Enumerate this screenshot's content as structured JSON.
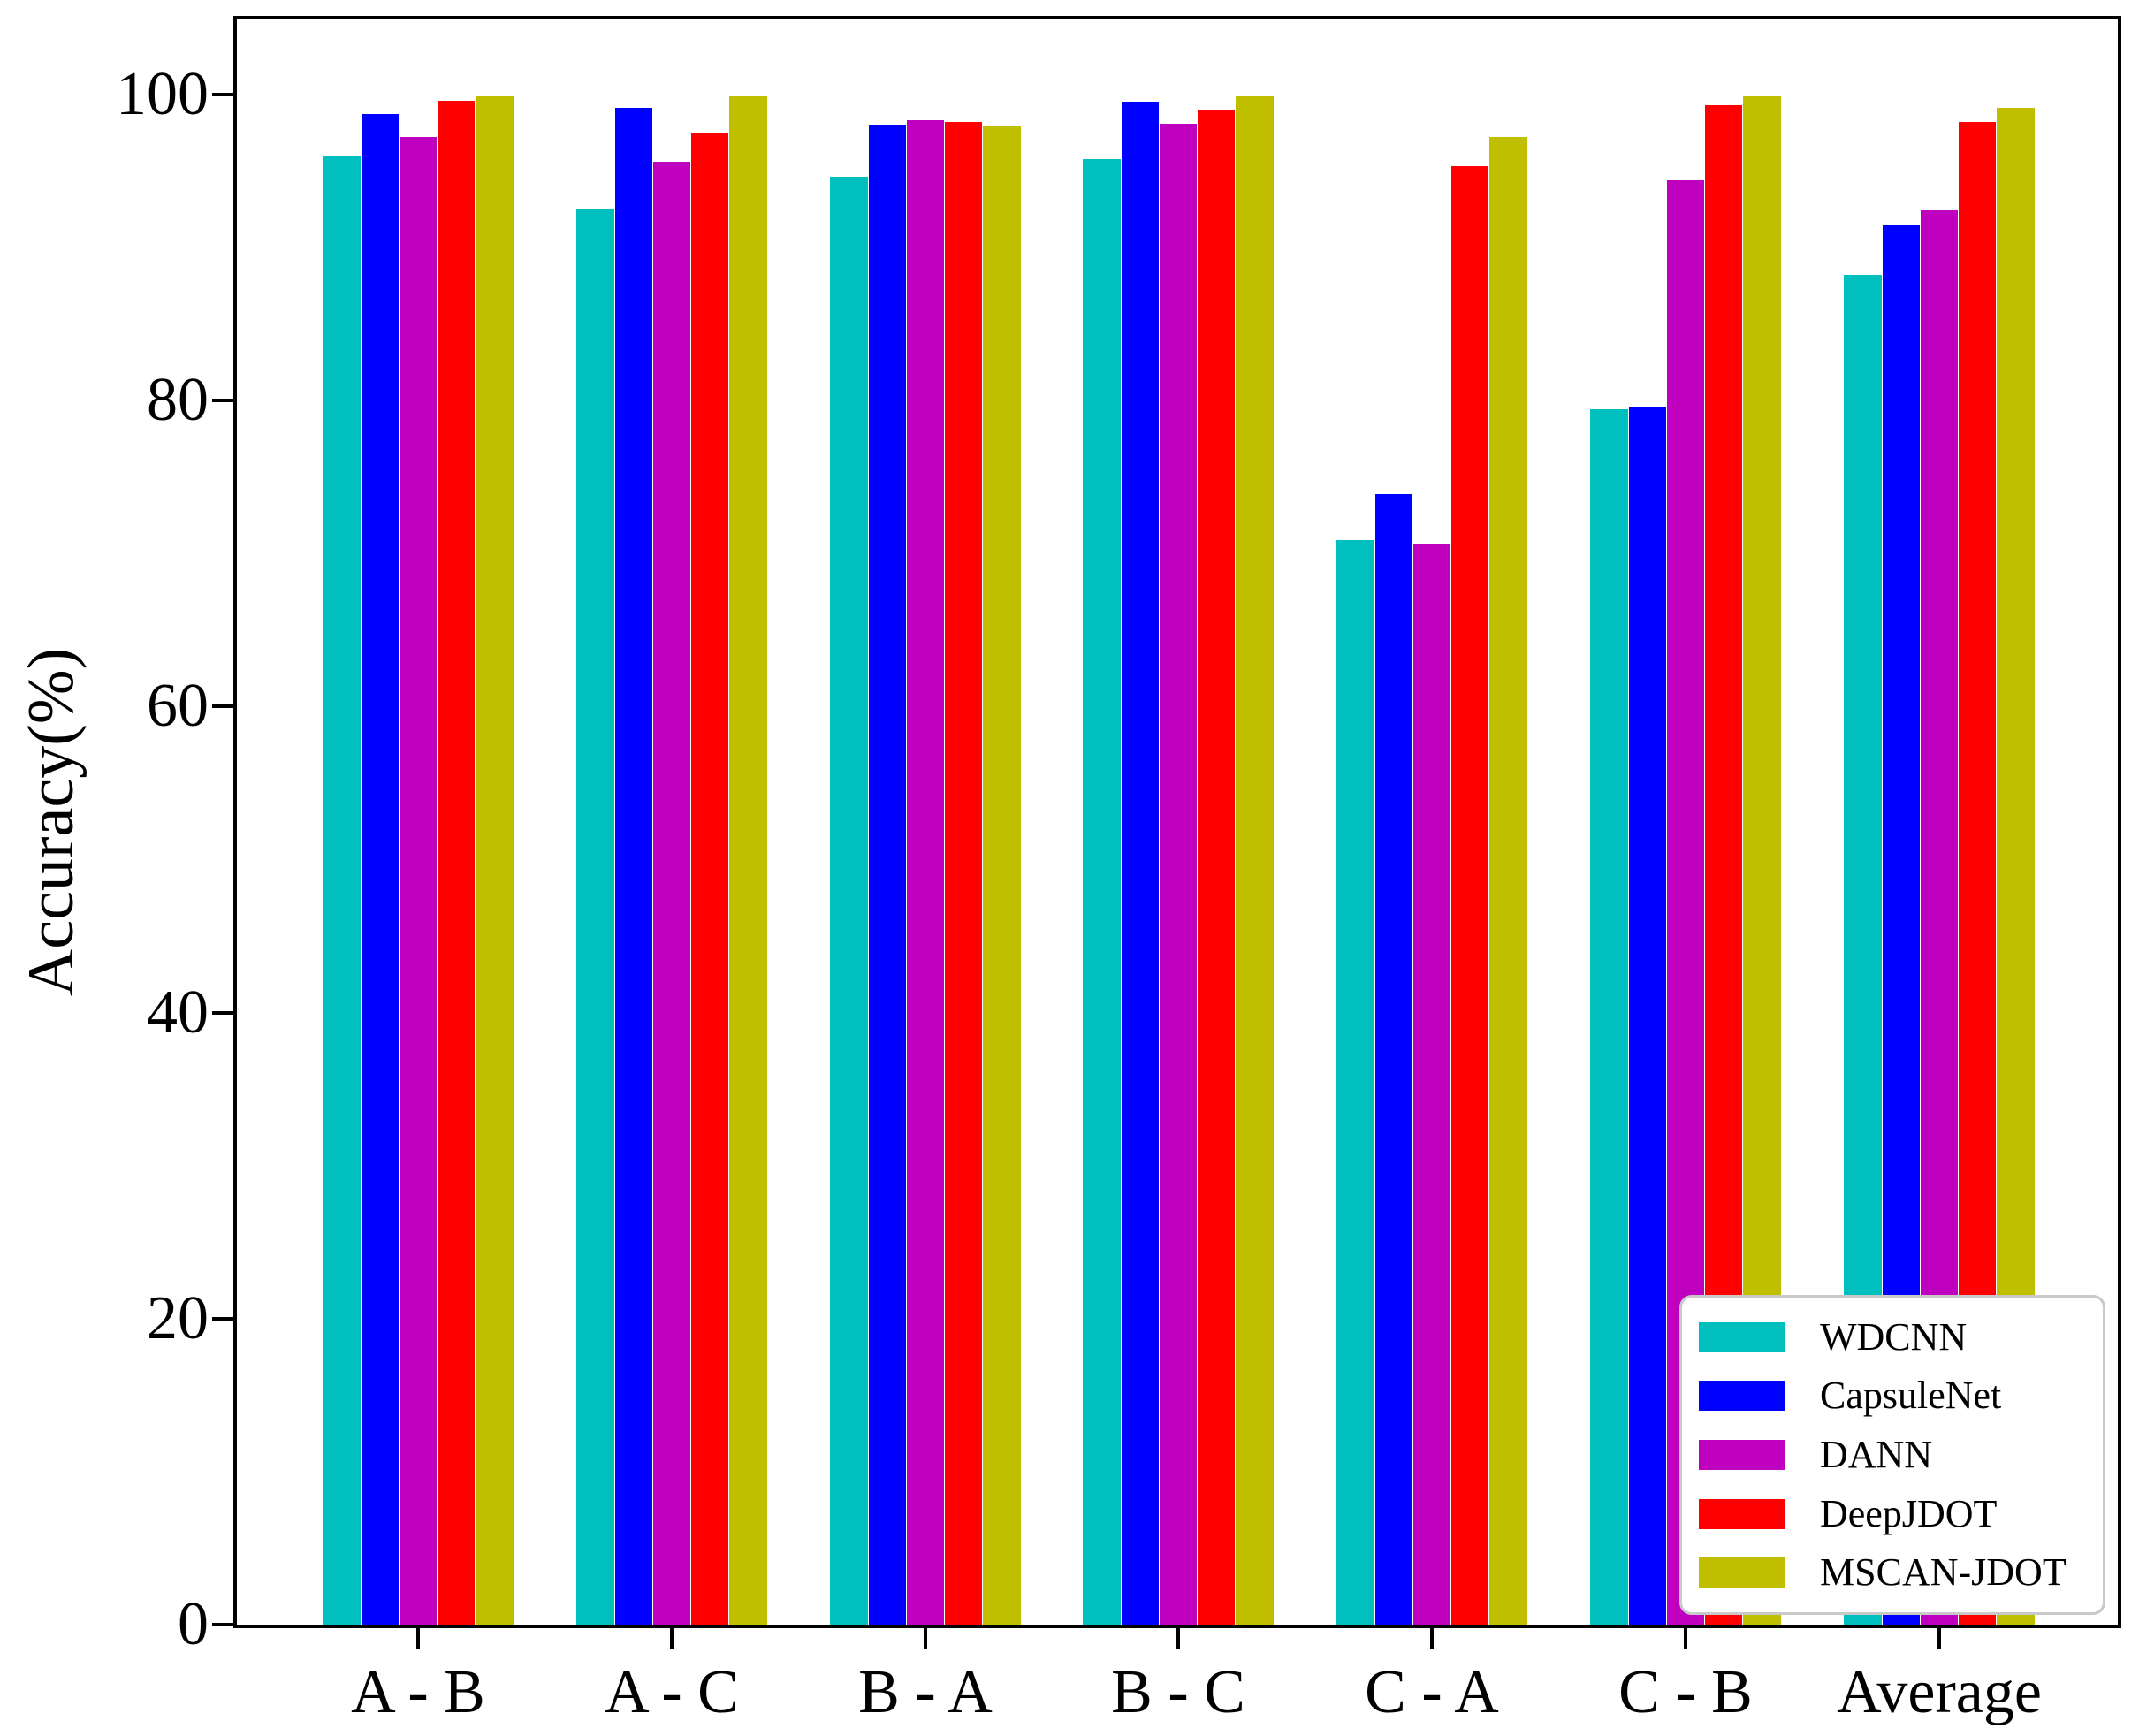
{
  "figure": {
    "background": "#ffffff",
    "axis_color": "#000000"
  },
  "chart_data": {
    "type": "bar",
    "title": "",
    "xlabel": "",
    "ylabel": "Accuracy(%)",
    "categories": [
      "A - B",
      "A - C",
      "B - A",
      "B - C",
      "C - A",
      "C - B",
      "Average"
    ],
    "series": [
      {
        "name": "WDCNN",
        "color": "#00BFBF",
        "values": [
          96.0,
          92.5,
          94.6,
          95.8,
          70.9,
          79.4,
          88.2
        ]
      },
      {
        "name": "CapsuleNet",
        "color": "#0000FF",
        "values": [
          98.7,
          99.1,
          98.0,
          99.5,
          73.9,
          79.6,
          91.5
        ]
      },
      {
        "name": "DANN",
        "color": "#BF00BF",
        "values": [
          97.2,
          95.6,
          98.3,
          98.1,
          70.6,
          94.4,
          92.4
        ]
      },
      {
        "name": "DeepJDOT",
        "color": "#FF0000",
        "values": [
          99.6,
          97.5,
          98.2,
          99.0,
          95.3,
          99.3,
          98.2
        ]
      },
      {
        "name": "MSCAN-JDOT",
        "color": "#BFBF00",
        "values": [
          99.9,
          99.9,
          97.9,
          99.9,
          97.2,
          99.9,
          99.1
        ]
      }
    ],
    "ylim": [
      0,
      104.9
    ],
    "yticks": [
      0,
      20,
      40,
      60,
      80,
      100
    ],
    "grid": false,
    "legend_position": "lower right"
  }
}
